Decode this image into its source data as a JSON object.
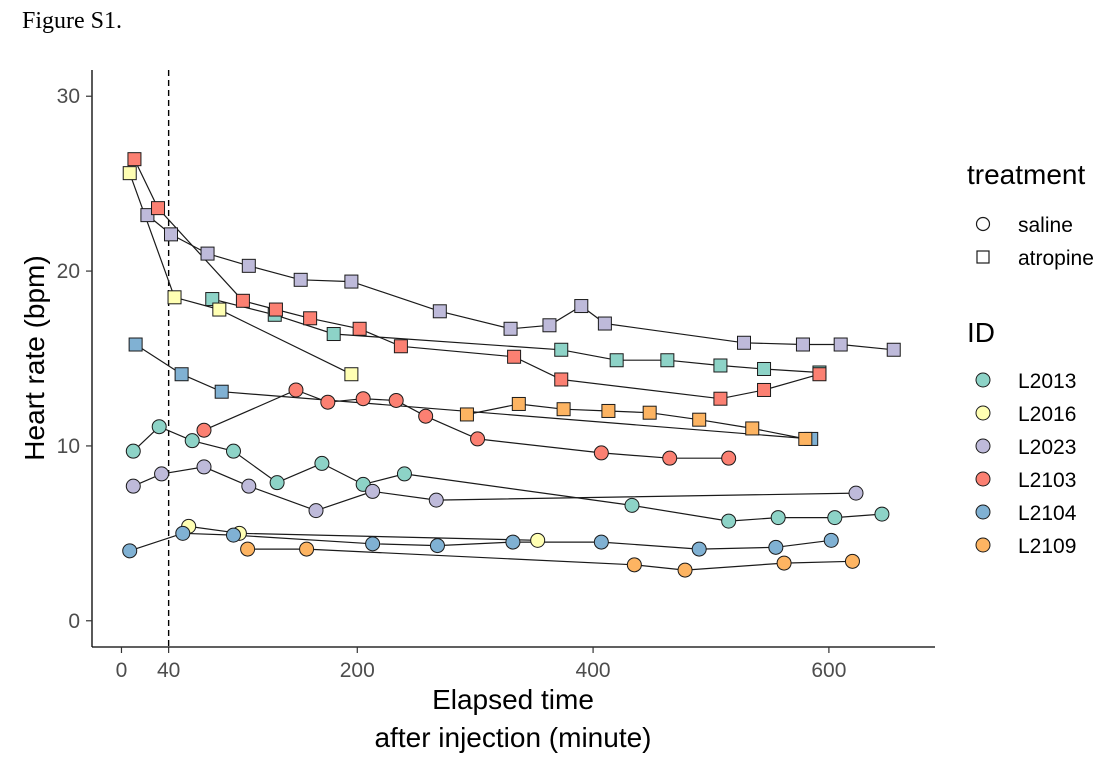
{
  "figure_label": "Figure S1.",
  "chart_data": {
    "type": "line",
    "xlabel_line1": "Elapsed time",
    "xlabel_line2": "after injection (minute)",
    "ylabel": "Heart rate (bpm)",
    "xlim": [
      -25,
      690
    ],
    "ylim": [
      -1.5,
      31.5
    ],
    "x_ticks": [
      0,
      40,
      200,
      400,
      600
    ],
    "y_ticks": [
      0,
      10,
      20,
      30
    ],
    "vline_x": 40,
    "grid": false,
    "legend_position": "right",
    "legend": {
      "shape_title": "treatment",
      "shapes": [
        {
          "label": "saline",
          "shape": "circle"
        },
        {
          "label": "atropine",
          "shape": "square"
        }
      ],
      "color_title": "ID",
      "colors": [
        {
          "label": "L2013",
          "color": "#8dd3c7"
        },
        {
          "label": "L2016",
          "color": "#ffffb3"
        },
        {
          "label": "L2023",
          "color": "#bebada"
        },
        {
          "label": "L2103",
          "color": "#fb8072"
        },
        {
          "label": "L2104",
          "color": "#80b1d3"
        },
        {
          "label": "L2109",
          "color": "#fdb462"
        }
      ]
    },
    "series": [
      {
        "id": "L2013",
        "treatment": "saline",
        "points": [
          [
            10,
            9.7
          ],
          [
            32,
            11.1
          ],
          [
            60,
            10.3
          ],
          [
            95,
            9.7
          ],
          [
            132,
            7.9
          ],
          [
            170,
            9.0
          ],
          [
            205,
            7.8
          ],
          [
            240,
            8.4
          ],
          [
            433,
            6.6
          ],
          [
            515,
            5.7
          ],
          [
            557,
            5.9
          ],
          [
            605,
            5.9
          ],
          [
            645,
            6.1
          ]
        ]
      },
      {
        "id": "L2016",
        "treatment": "saline",
        "points": [
          [
            57,
            5.4
          ],
          [
            100,
            5.0
          ],
          [
            353,
            4.6
          ]
        ]
      },
      {
        "id": "L2023",
        "treatment": "saline",
        "points": [
          [
            10,
            7.7
          ],
          [
            34,
            8.4
          ],
          [
            70,
            8.8
          ],
          [
            108,
            7.7
          ],
          [
            165,
            6.3
          ],
          [
            213,
            7.4
          ],
          [
            267,
            6.9
          ],
          [
            623,
            7.3
          ]
        ]
      },
      {
        "id": "L2103",
        "treatment": "saline",
        "points": [
          [
            70,
            10.9
          ],
          [
            148,
            13.2
          ],
          [
            175,
            12.5
          ],
          [
            205,
            12.7
          ],
          [
            233,
            12.6
          ],
          [
            258,
            11.7
          ],
          [
            302,
            10.4
          ],
          [
            407,
            9.6
          ],
          [
            465,
            9.3
          ],
          [
            515,
            9.3
          ]
        ]
      },
      {
        "id": "L2104",
        "treatment": "saline",
        "points": [
          [
            7,
            4.0
          ],
          [
            52,
            5.0
          ],
          [
            95,
            4.9
          ],
          [
            213,
            4.4
          ],
          [
            268,
            4.3
          ],
          [
            332,
            4.5
          ],
          [
            407,
            4.5
          ],
          [
            490,
            4.1
          ],
          [
            555,
            4.2
          ],
          [
            602,
            4.6
          ]
        ]
      },
      {
        "id": "L2109",
        "treatment": "saline",
        "points": [
          [
            107,
            4.1
          ],
          [
            157,
            4.1
          ],
          [
            435,
            3.2
          ],
          [
            478,
            2.9
          ],
          [
            562,
            3.3
          ],
          [
            620,
            3.4
          ]
        ]
      },
      {
        "id": "L2013",
        "treatment": "atropine",
        "points": [
          [
            77,
            18.4
          ],
          [
            130,
            17.5
          ],
          [
            180,
            16.4
          ],
          [
            373,
            15.5
          ],
          [
            420,
            14.9
          ],
          [
            463,
            14.9
          ],
          [
            508,
            14.6
          ],
          [
            545,
            14.4
          ],
          [
            592,
            14.2
          ]
        ]
      },
      {
        "id": "L2016",
        "treatment": "atropine",
        "points": [
          [
            7,
            25.6
          ],
          [
            45,
            18.5
          ],
          [
            83,
            17.8
          ],
          [
            195,
            14.1
          ]
        ]
      },
      {
        "id": "L2023",
        "treatment": "atropine",
        "points": [
          [
            22,
            23.2
          ],
          [
            42,
            22.1
          ],
          [
            73,
            21.0
          ],
          [
            108,
            20.3
          ],
          [
            152,
            19.5
          ],
          [
            195,
            19.4
          ],
          [
            270,
            17.7
          ],
          [
            330,
            16.7
          ],
          [
            363,
            16.9
          ],
          [
            390,
            18.0
          ],
          [
            410,
            17.0
          ],
          [
            528,
            15.9
          ],
          [
            578,
            15.8
          ],
          [
            610,
            15.8
          ],
          [
            655,
            15.5
          ]
        ]
      },
      {
        "id": "L2103",
        "treatment": "atropine",
        "points": [
          [
            11,
            26.4
          ],
          [
            31,
            23.6
          ],
          [
            103,
            18.3
          ],
          [
            131,
            17.8
          ],
          [
            160,
            17.3
          ],
          [
            202,
            16.7
          ],
          [
            237,
            15.7
          ],
          [
            333,
            15.1
          ],
          [
            373,
            13.8
          ],
          [
            508,
            12.7
          ],
          [
            545,
            13.2
          ],
          [
            592,
            14.1
          ]
        ]
      },
      {
        "id": "L2104",
        "treatment": "atropine",
        "points": [
          [
            12,
            15.8
          ],
          [
            51,
            14.1
          ],
          [
            85,
            13.1
          ],
          [
            585,
            10.4
          ]
        ]
      },
      {
        "id": "L2109",
        "treatment": "atropine",
        "points": [
          [
            293,
            11.8
          ],
          [
            337,
            12.4
          ],
          [
            375,
            12.1
          ],
          [
            413,
            12.0
          ],
          [
            448,
            11.9
          ],
          [
            490,
            11.5
          ],
          [
            535,
            11.0
          ],
          [
            580,
            10.4
          ]
        ]
      }
    ]
  }
}
